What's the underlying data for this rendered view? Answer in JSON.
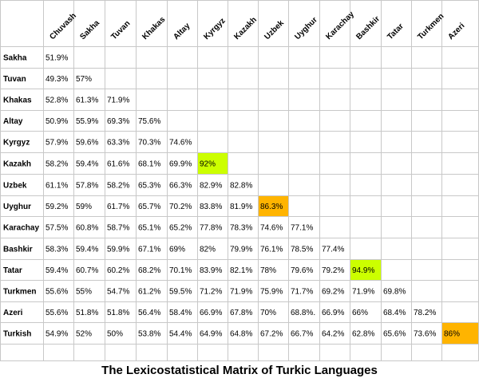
{
  "chart_data": {
    "type": "table",
    "title": "The Lexicostatistical Matrix of Turkic Languages",
    "columns": [
      "Chuvash",
      "Sakha",
      "Tuvan",
      "Khakas",
      "Altay",
      "Kyrgyz",
      "Kazakh",
      "Uzbek",
      "Uyghur",
      "Karachay",
      "Bashkir",
      "Tatar",
      "Turkmen",
      "Azeri"
    ],
    "rows": [
      {
        "label": "Sakha",
        "values": [
          "51.9%"
        ]
      },
      {
        "label": "Tuvan",
        "values": [
          "49.3%",
          "57%"
        ]
      },
      {
        "label": "Khakas",
        "values": [
          "52.8%",
          "61.3%",
          "71.9%"
        ]
      },
      {
        "label": "Altay",
        "values": [
          "50.9%",
          "55.9%",
          "69.3%",
          "75.6%"
        ]
      },
      {
        "label": "Kyrgyz",
        "values": [
          "57.9%",
          "59.6%",
          "63.3%",
          "70.3%",
          "74.6%"
        ]
      },
      {
        "label": "Kazakh",
        "values": [
          "58.2%",
          "59.4%",
          "61.6%",
          "68.1%",
          "69.9%",
          "92%"
        ]
      },
      {
        "label": "Uzbek",
        "values": [
          "61.1%",
          "57.8%",
          "58.2%",
          "65.3%",
          "66.3%",
          "82.9%",
          "82.8%"
        ]
      },
      {
        "label": "Uyghur",
        "values": [
          "59.2%",
          "59%",
          "61.7%",
          "65.7%",
          "70.2%",
          "83.8%",
          "81.9%",
          "86.3%"
        ]
      },
      {
        "label": "Karachay",
        "values": [
          "57.5%",
          "60.8%",
          "58.7%",
          "65.1%",
          "65.2%",
          "77.8%",
          "78.3%",
          "74.6%",
          "77.1%"
        ]
      },
      {
        "label": "Bashkir",
        "values": [
          "58.3%",
          "59.4%",
          "59.9%",
          "67.1%",
          "69%",
          "82%",
          "79.9%",
          "76.1%",
          "78.5%",
          "77.4%"
        ]
      },
      {
        "label": "Tatar",
        "values": [
          "59.4%",
          "60.7%",
          "60.2%",
          "68.2%",
          "70.1%",
          "83.9%",
          "82.1%",
          "78%",
          "79.6%",
          "79.2%",
          "94.9%"
        ]
      },
      {
        "label": "Turkmen",
        "values": [
          "55.6%",
          "55%",
          "54.7%",
          "61.2%",
          "59.5%",
          "71.2%",
          "71.9%",
          "75.9%",
          "71.7%",
          "69.2%",
          "71.9%",
          "69.8%"
        ]
      },
      {
        "label": "Azeri",
        "values": [
          "55.6%",
          "51.8%",
          "51.8%",
          "56.4%",
          "58.4%",
          "66.9%",
          "67.8%",
          "70%",
          "68.8%.",
          "66.9%",
          "66%",
          "68.4%",
          "78.2%"
        ]
      },
      {
        "label": "Turkish",
        "values": [
          "54.9%",
          "52%",
          "50%",
          "53.8%",
          "54.4%",
          "64.9%",
          "64.8%",
          "67.2%",
          "66.7%",
          "64.2%",
          "62.8%",
          "65.6%",
          "73.6%",
          "86%"
        ]
      }
    ],
    "highlights": [
      {
        "row": 5,
        "col": 5,
        "color": "#ccff00"
      },
      {
        "row": 7,
        "col": 7,
        "color": "#ffb400"
      },
      {
        "row": 10,
        "col": 10,
        "color": "#ccff00"
      },
      {
        "row": 13,
        "col": 13,
        "color": "#ffb400"
      }
    ]
  }
}
